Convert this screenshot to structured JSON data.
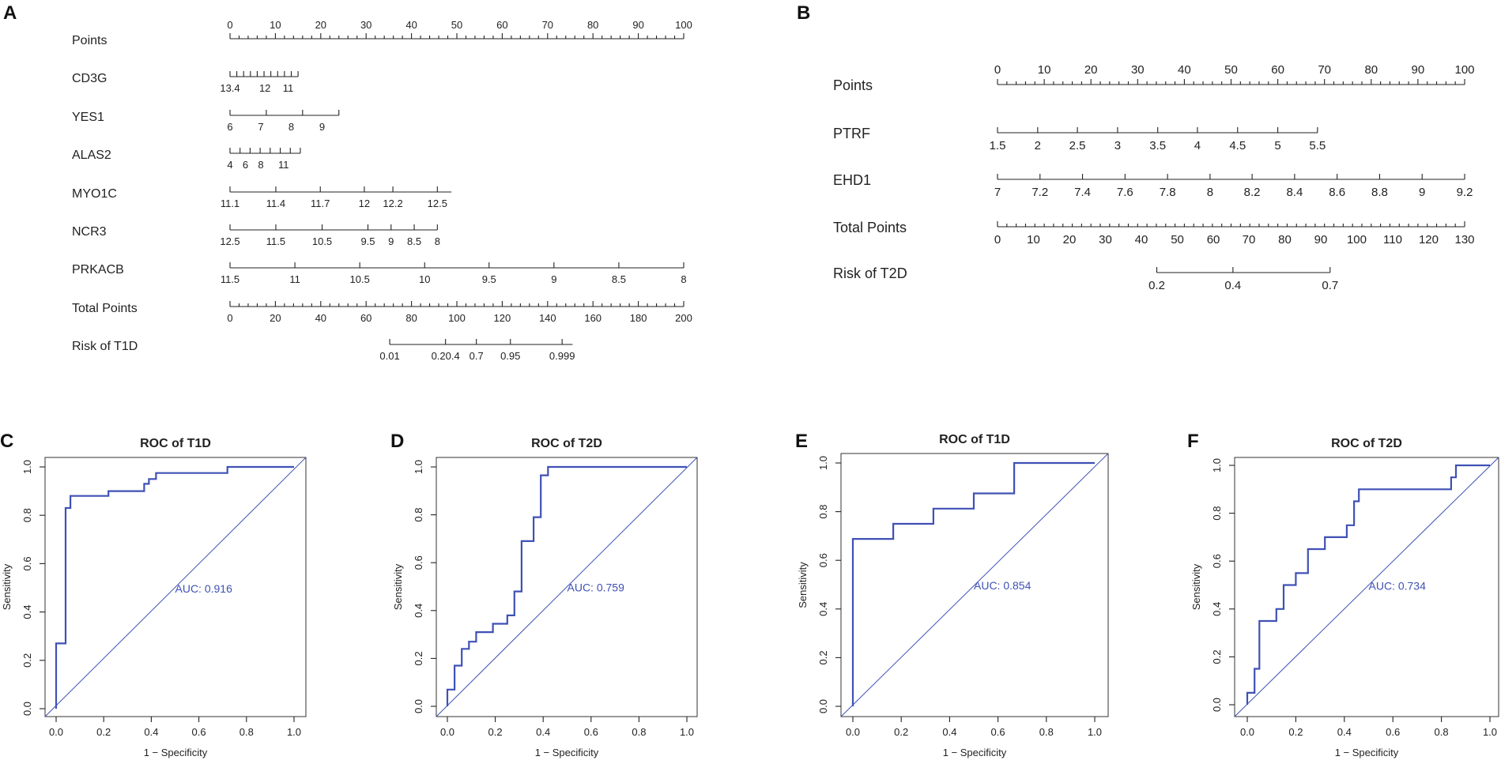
{
  "panel_letters": {
    "A": "A",
    "B": "B",
    "C": "C",
    "D": "D",
    "E": "E",
    "F": "F"
  },
  "chart_data": [
    {
      "panel": "A",
      "type": "nomogram",
      "title": "",
      "rows": [
        {
          "label": "Points",
          "minor_ticks": true,
          "labels": [
            {
              "t": "0",
              "pos": 0
            },
            {
              "t": "10",
              "pos": 10
            },
            {
              "t": "20",
              "pos": 20
            },
            {
              "t": "30",
              "pos": 30
            },
            {
              "t": "40",
              "pos": 40
            },
            {
              "t": "50",
              "pos": 50
            },
            {
              "t": "60",
              "pos": 60
            },
            {
              "t": "70",
              "pos": 70
            },
            {
              "t": "80",
              "pos": 80
            },
            {
              "t": "90",
              "pos": 90
            },
            {
              "t": "100",
              "pos": 100
            }
          ]
        },
        {
          "label": "CD3G",
          "range": [
            0,
            15
          ],
          "tick_count": 11,
          "labels": [
            {
              "t": "13.4",
              "pos": 0
            },
            {
              "t": "12",
              "pos": 7.7
            },
            {
              "t": "11",
              "pos": 12.8
            }
          ]
        },
        {
          "label": "YES1",
          "range": [
            0,
            24
          ],
          "tick_count": 4,
          "labels": [
            {
              "t": "6",
              "pos": 0
            },
            {
              "t": "7",
              "pos": 6.8
            },
            {
              "t": "8",
              "pos": 13.5
            },
            {
              "t": "9",
              "pos": 20.3
            }
          ]
        },
        {
          "label": "ALAS2",
          "range": [
            0,
            15.5
          ],
          "tick_count": 8,
          "labels": [
            {
              "t": "4",
              "pos": 0
            },
            {
              "t": "6",
              "pos": 3.4
            },
            {
              "t": "8",
              "pos": 6.8
            },
            {
              "t": "11",
              "pos": 11.8
            }
          ]
        },
        {
          "label": "MYO1C",
          "range": [
            0,
            48.8
          ],
          "labels": [
            {
              "t": "11.1",
              "pos": 0
            },
            {
              "t": "11.4",
              "pos": 10.1
            },
            {
              "t": "11.7",
              "pos": 19.9
            },
            {
              "t": "12",
              "pos": 29.6
            },
            {
              "t": "12.2",
              "pos": 35.9
            },
            {
              "t": "12.5",
              "pos": 45.7
            }
          ]
        },
        {
          "label": "NCR3",
          "range": [
            0,
            45.7
          ],
          "labels": [
            {
              "t": "12.5",
              "pos": 0
            },
            {
              "t": "11.5",
              "pos": 10.1
            },
            {
              "t": "10.5",
              "pos": 20.3
            },
            {
              "t": "9.5",
              "pos": 30.4
            },
            {
              "t": "9",
              "pos": 35.5
            },
            {
              "t": "8.5",
              "pos": 40.6
            },
            {
              "t": "8",
              "pos": 45.7
            }
          ]
        },
        {
          "label": "PRKACB",
          "range": [
            0,
            100
          ],
          "labels": [
            {
              "t": "11.5",
              "pos": 0
            },
            {
              "t": "11",
              "pos": 14.3
            },
            {
              "t": "10.5",
              "pos": 28.6
            },
            {
              "t": "10",
              "pos": 42.9
            },
            {
              "t": "9.5",
              "pos": 57.1
            },
            {
              "t": "9",
              "pos": 71.4
            },
            {
              "t": "8.5",
              "pos": 85.7
            },
            {
              "t": "8",
              "pos": 100
            }
          ]
        },
        {
          "label": "Total Points",
          "minor_ticks": true,
          "labels": [
            {
              "t": "0",
              "pos": 0
            },
            {
              "t": "20",
              "pos": 10
            },
            {
              "t": "40",
              "pos": 20
            },
            {
              "t": "60",
              "pos": 30
            },
            {
              "t": "80",
              "pos": 40
            },
            {
              "t": "100",
              "pos": 50
            },
            {
              "t": "120",
              "pos": 60
            },
            {
              "t": "140",
              "pos": 70
            },
            {
              "t": "160",
              "pos": 80
            },
            {
              "t": "180",
              "pos": 90
            },
            {
              "t": "200",
              "pos": 100
            }
          ]
        },
        {
          "label": "Risk of T1D",
          "range": [
            35.2,
            75.5
          ],
          "labels": [
            {
              "t": "0.01",
              "pos": 35.2
            },
            {
              "t": "0.20.4",
              "pos": 47.5
            },
            {
              "t": "0.7",
              "pos": 54.3
            },
            {
              "t": "0.95",
              "pos": 61.8
            },
            {
              "t": "0.999",
              "pos": 73.2
            }
          ]
        }
      ]
    },
    {
      "panel": "B",
      "type": "nomogram",
      "title": "",
      "rows": [
        {
          "label": "Points",
          "minor_ticks": true,
          "labels": [
            {
              "t": "0",
              "pos": 0
            },
            {
              "t": "10",
              "pos": 10
            },
            {
              "t": "20",
              "pos": 20
            },
            {
              "t": "30",
              "pos": 30
            },
            {
              "t": "40",
              "pos": 40
            },
            {
              "t": "50",
              "pos": 50
            },
            {
              "t": "60",
              "pos": 60
            },
            {
              "t": "70",
              "pos": 70
            },
            {
              "t": "80",
              "pos": 80
            },
            {
              "t": "90",
              "pos": 90
            },
            {
              "t": "100",
              "pos": 100
            }
          ]
        },
        {
          "label": "PTRF",
          "range": [
            0,
            68.5
          ],
          "labels": [
            {
              "t": "1.5",
              "pos": 0
            },
            {
              "t": "2",
              "pos": 8.6
            },
            {
              "t": "2.5",
              "pos": 17.1
            },
            {
              "t": "3",
              "pos": 25.7
            },
            {
              "t": "3.5",
              "pos": 34.3
            },
            {
              "t": "4",
              "pos": 42.8
            },
            {
              "t": "4.5",
              "pos": 51.4
            },
            {
              "t": "5",
              "pos": 60
            },
            {
              "t": "5.5",
              "pos": 68.5
            }
          ]
        },
        {
          "label": "EHD1",
          "range": [
            0,
            100
          ],
          "labels": [
            {
              "t": "7",
              "pos": 0
            },
            {
              "t": "7.2",
              "pos": 9.1
            },
            {
              "t": "7.4",
              "pos": 18.2
            },
            {
              "t": "7.6",
              "pos": 27.3
            },
            {
              "t": "7.8",
              "pos": 36.4
            },
            {
              "t": "8",
              "pos": 45.5
            },
            {
              "t": "8.2",
              "pos": 54.5
            },
            {
              "t": "8.4",
              "pos": 63.6
            },
            {
              "t": "8.6",
              "pos": 72.7
            },
            {
              "t": "8.8",
              "pos": 81.8
            },
            {
              "t": "9",
              "pos": 90.9
            },
            {
              "t": "9.2",
              "pos": 100
            }
          ]
        },
        {
          "label": "Total Points",
          "minor_ticks": true,
          "labels": [
            {
              "t": "0",
              "pos": 0
            },
            {
              "t": "10",
              "pos": 7.7
            },
            {
              "t": "20",
              "pos": 15.4
            },
            {
              "t": "30",
              "pos": 23.1
            },
            {
              "t": "40",
              "pos": 30.8
            },
            {
              "t": "50",
              "pos": 38.5
            },
            {
              "t": "60",
              "pos": 46.2
            },
            {
              "t": "70",
              "pos": 53.8
            },
            {
              "t": "80",
              "pos": 61.5
            },
            {
              "t": "90",
              "pos": 69.2
            },
            {
              "t": "100",
              "pos": 76.9
            },
            {
              "t": "110",
              "pos": 84.6
            },
            {
              "t": "120",
              "pos": 92.3
            },
            {
              "t": "130",
              "pos": 100
            }
          ]
        },
        {
          "label": "Risk of T2D",
          "range": [
            34.1,
            71.2
          ],
          "labels": [
            {
              "t": "0.2",
              "pos": 34.1
            },
            {
              "t": "0.4",
              "pos": 50.4
            },
            {
              "t": "0.7",
              "pos": 71.2
            }
          ]
        }
      ]
    },
    {
      "panel": "C",
      "type": "line",
      "title": "ROC of T1D",
      "xlabel": "1 − Specificity",
      "ylabel": "Sensitivity",
      "xlim": [
        0,
        1
      ],
      "ylim": [
        0,
        1
      ],
      "ticks": [
        "0.0",
        "0.2",
        "0.4",
        "0.6",
        "0.8",
        "1.0"
      ],
      "auc_label": "AUC: 0.916",
      "auc_at": [
        0.5,
        0.48
      ],
      "x": [
        0,
        0,
        0.04,
        0.04,
        0.06,
        0.06,
        0.22,
        0.22,
        0.37,
        0.37,
        0.39,
        0.39,
        0.42,
        0.42,
        0.72,
        0.72,
        1.0
      ],
      "y": [
        0,
        0.27,
        0.27,
        0.83,
        0.83,
        0.88,
        0.88,
        0.9,
        0.9,
        0.93,
        0.93,
        0.95,
        0.95,
        0.975,
        0.975,
        1.0,
        1.0
      ]
    },
    {
      "panel": "D",
      "type": "line",
      "title": "ROC of T2D",
      "xlabel": "1 − Specificity",
      "ylabel": "Sensitivity",
      "xlim": [
        0,
        1
      ],
      "ylim": [
        0,
        1
      ],
      "ticks": [
        "0.0",
        "0.2",
        "0.4",
        "0.6",
        "0.8",
        "1.0"
      ],
      "auc_label": "AUC: 0.759",
      "auc_at": [
        0.5,
        0.48
      ],
      "x": [
        0,
        0,
        0.03,
        0.03,
        0.06,
        0.06,
        0.09,
        0.09,
        0.12,
        0.12,
        0.19,
        0.19,
        0.25,
        0.25,
        0.28,
        0.28,
        0.31,
        0.31,
        0.36,
        0.36,
        0.39,
        0.39,
        0.42,
        0.42,
        1.0
      ],
      "y": [
        0,
        0.07,
        0.07,
        0.17,
        0.17,
        0.24,
        0.24,
        0.27,
        0.27,
        0.31,
        0.31,
        0.345,
        0.345,
        0.38,
        0.38,
        0.48,
        0.48,
        0.69,
        0.69,
        0.79,
        0.79,
        0.965,
        0.965,
        1.0,
        1.0
      ]
    },
    {
      "panel": "E",
      "type": "line",
      "title": "ROC of T1D",
      "xlabel": "1 − Specificity",
      "ylabel": "Sensitivity",
      "xlim": [
        0,
        1
      ],
      "ylim": [
        0,
        1
      ],
      "ticks": [
        "0.0",
        "0.2",
        "0.4",
        "0.6",
        "0.8",
        "1.0"
      ],
      "auc_label": "AUC: 0.854",
      "auc_at": [
        0.5,
        0.48
      ],
      "x": [
        0,
        0,
        0.167,
        0.167,
        0.333,
        0.333,
        0.5,
        0.5,
        0.667,
        0.667,
        1.0
      ],
      "y": [
        0,
        0.688,
        0.688,
        0.75,
        0.75,
        0.8125,
        0.8125,
        0.875,
        0.875,
        1.0,
        1.0
      ]
    },
    {
      "panel": "F",
      "type": "line",
      "title": "ROC of T2D",
      "xlabel": "1 − Specificity",
      "ylabel": "Sensitivity",
      "xlim": [
        0,
        1
      ],
      "ylim": [
        0,
        1
      ],
      "ticks": [
        "0.0",
        "0.2",
        "0.4",
        "0.6",
        "0.8",
        "1.0"
      ],
      "auc_label": "AUC: 0.734",
      "auc_at": [
        0.5,
        0.48
      ],
      "x": [
        0,
        0,
        0.03,
        0.03,
        0.05,
        0.05,
        0.12,
        0.12,
        0.15,
        0.15,
        0.2,
        0.2,
        0.25,
        0.25,
        0.32,
        0.32,
        0.41,
        0.41,
        0.44,
        0.44,
        0.46,
        0.46,
        0.49,
        0.49,
        0.84,
        0.84,
        0.86,
        0.86,
        1.0
      ],
      "y": [
        0,
        0.05,
        0.05,
        0.15,
        0.15,
        0.35,
        0.35,
        0.4,
        0.4,
        0.5,
        0.5,
        0.55,
        0.55,
        0.65,
        0.65,
        0.7,
        0.7,
        0.75,
        0.75,
        0.85,
        0.85,
        0.9,
        0.9,
        0.9,
        0.9,
        0.95,
        0.95,
        1.0,
        1.0
      ]
    }
  ]
}
